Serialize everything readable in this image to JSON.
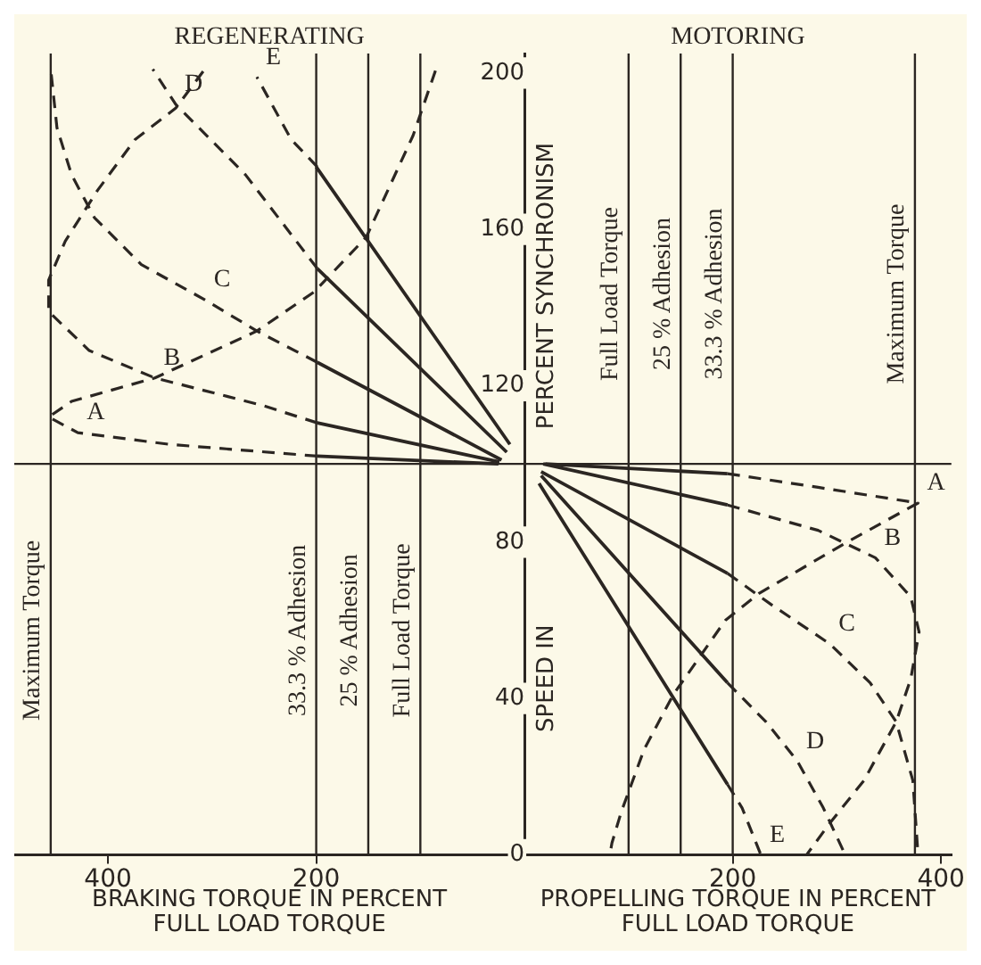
{
  "chart_data": {
    "type": "line",
    "ylabel": "SPEED IN PERCENT SYNCHRONISM",
    "marker": "none",
    "xlim": [
      -490,
      410
    ],
    "xticks": [
      {
        "value": -400,
        "label": "400"
      },
      {
        "value": -200,
        "label": "200"
      },
      200,
      400
    ],
    "ylim": [
      0,
      205
    ],
    "yticks": [
      0,
      40,
      80,
      120,
      160,
      200
    ],
    "annotations": [
      "REGENERATING",
      "MOTORING",
      "BRAKING TORQUE IN PERCENT FULL LOAD TORQUE",
      "PROPELLING TORQUE IN PERCENT FULL LOAD TORQUE"
    ],
    "ref_lines": [
      {
        "axis": "x",
        "value": -455,
        "label": "Maximum Torque"
      },
      {
        "axis": "x",
        "value": -200,
        "label": "33.3 % Adhesion"
      },
      {
        "axis": "x",
        "value": -150,
        "label": "25 % Adhesion"
      },
      {
        "axis": "x",
        "value": -100,
        "label": "Full Load Torque"
      },
      {
        "axis": "x",
        "value": 100,
        "label": "Full Load Torque"
      },
      {
        "axis": "x",
        "value": 150,
        "label": "25 % Adhesion"
      },
      {
        "axis": "x",
        "value": 200,
        "label": "33.3 % Adhesion"
      },
      {
        "axis": "x",
        "value": 375,
        "label": "Maximum Torque"
      },
      {
        "axis": "y",
        "value": 100
      }
    ],
    "series": [
      {
        "name": "A",
        "line_style": "dashed",
        "color": "#2b2622",
        "x": [
          195,
          282,
          378,
          310,
          226,
          193,
          143,
          115,
          93,
          84,
          82,
          0,
          -199,
          -341,
          -429,
          -457,
          -435,
          -355,
          -257,
          -202,
          -152,
          -107,
          -85
        ],
        "values": [
          97.5,
          94,
          90,
          80,
          67,
          60,
          41,
          27,
          11,
          3,
          0,
          null,
          102,
          105,
          108,
          112,
          116,
          122,
          134,
          144,
          158,
          184,
          201
        ]
      },
      {
        "name": "B",
        "line_style": "dashed",
        "color": "#2b2622",
        "x": [
          195,
          282,
          337,
          371,
          379,
          371,
          357,
          326,
          293,
          271,
          0,
          -199,
          -252,
          -355,
          -418,
          -457,
          -457,
          -441,
          -410,
          -374,
          -335,
          -307
        ],
        "values": [
          89.5,
          83,
          76,
          66,
          57,
          45,
          34,
          19,
          8,
          0,
          null,
          110.5,
          115,
          122,
          129,
          139,
          147,
          157,
          170,
          183,
          191,
          201
        ]
      },
      {
        "name": "C",
        "line_style": "dashed",
        "color": "#2b2622",
        "x": [
          195,
          237,
          293,
          332,
          357,
          373,
          378,
          0,
          -199,
          -257,
          -307,
          -368,
          -413,
          -435,
          -449,
          -455
        ],
        "values": [
          72,
          64,
          54,
          44,
          34,
          19,
          0,
          null,
          126,
          134,
          142,
          151,
          163,
          174,
          186,
          201
        ]
      },
      {
        "name": "D",
        "line_style": "dashed",
        "color": "#2b2622",
        "x": [
          195,
          232,
          262,
          287,
          308,
          0,
          -199,
          -268,
          -335,
          -357
        ],
        "values": [
          44,
          34,
          24,
          12,
          0,
          null,
          150,
          174,
          192,
          201
        ]
      },
      {
        "name": "E",
        "line_style": "dashed",
        "color": "#2b2622",
        "x": [
          195,
          209,
          227,
          0,
          -199,
          -224,
          -257
        ],
        "values": [
          18,
          12,
          0,
          null,
          176,
          183,
          199
        ]
      },
      {
        "line_style": "solid",
        "color": "#2b2622",
        "x": [
          20,
          195,
          0,
          -25,
          -199
        ],
        "values": [
          100,
          97.5,
          null,
          100,
          102
        ]
      },
      {
        "line_style": "solid",
        "color": "#2b2622",
        "x": [
          18,
          195,
          0,
          -24,
          -199
        ],
        "values": [
          100,
          89.5,
          null,
          100.5,
          110.5
        ]
      },
      {
        "line_style": "solid",
        "color": "#2b2622",
        "x": [
          16,
          195,
          0,
          -22,
          -199
        ],
        "values": [
          98,
          72,
          null,
          101,
          126
        ]
      },
      {
        "line_style": "solid",
        "color": "#2b2622",
        "x": [
          16,
          195,
          0,
          -17,
          -199
        ],
        "values": [
          97,
          44,
          null,
          103,
          150
        ]
      },
      {
        "line_style": "solid",
        "color": "#2b2622",
        "x": [
          14,
          195,
          0,
          -14,
          -200
        ],
        "values": [
          95,
          18,
          null,
          105,
          176
        ]
      }
    ]
  }
}
